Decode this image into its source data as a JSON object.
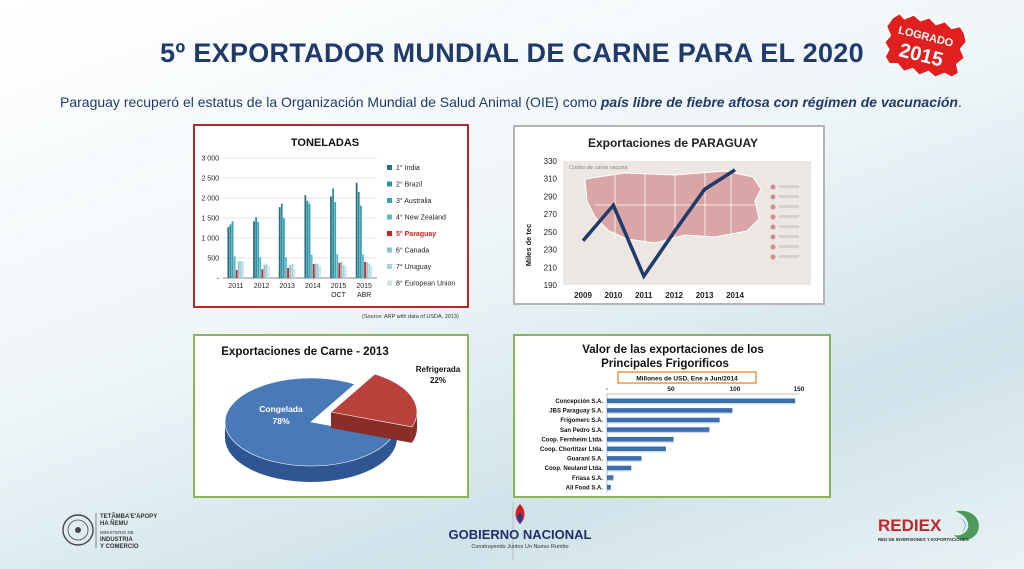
{
  "header": {
    "title": "5º EXPORTADOR MUNDIAL DE CARNE PARA EL 2020",
    "subtitle_plain": "Paraguay recuperó el estatus de la Organización Mundial de Salud Animal (OIE) como ",
    "subtitle_emph": "país libre de fiebre aftosa con régimen de vacunación",
    "subtitle_end": "."
  },
  "badge": {
    "line1": "LOGRADO",
    "line2": "2015",
    "color": "#e11f1f"
  },
  "colors": {
    "title": "#1f3a6b",
    "paraguay": "#d41f1f",
    "line": "#1f3a6b",
    "pie_congelada": "#4a79b8",
    "pie_refrigerada": "#b8413c",
    "bars_hbar": "#3d6fb0"
  },
  "chart_data": [
    {
      "type": "bar",
      "title": "TONELADAS",
      "categories": [
        "2011",
        "2012",
        "2013",
        "2014",
        "2015 OCT",
        "2015 ABR"
      ],
      "ylim": [
        0,
        3000
      ],
      "yticks": [
        "-",
        "500",
        "1 000",
        "1 500",
        "2 000",
        "2 500",
        "3 000"
      ],
      "series": [
        {
          "name": "1° India",
          "color": "#2a6f86",
          "values": [
            1270,
            1420,
            1770,
            2070,
            2040,
            2380
          ]
        },
        {
          "name": "2° Brazil",
          "color": "#2f8fa3",
          "values": [
            1340,
            1520,
            1860,
            1930,
            2240,
            2150
          ]
        },
        {
          "name": "3° Australia",
          "color": "#36a3b3",
          "values": [
            1420,
            1400,
            1500,
            1860,
            1900,
            1810
          ]
        },
        {
          "name": "4° New Zealand",
          "color": "#5bb8c4",
          "values": [
            540,
            520,
            520,
            580,
            600,
            590
          ]
        },
        {
          "name": "5° Paraguay",
          "color": "#d41f1f",
          "values": [
            200,
            220,
            250,
            350,
            380,
            400
          ]
        },
        {
          "name": "6° Canada",
          "color": "#87c5d1",
          "values": [
            420,
            330,
            320,
            360,
            410,
            400
          ]
        },
        {
          "name": "7° Uruguay",
          "color": "#a8d2dc",
          "values": [
            420,
            350,
            350,
            350,
            320,
            360
          ]
        },
        {
          "name": "8° European Union",
          "color": "#c9e3ea",
          "values": [
            430,
            290,
            240,
            300,
            300,
            300
          ]
        }
      ],
      "source": "(Source: ARP with data of USDA, 2013)"
    },
    {
      "type": "line",
      "title": "Exportaciones de PARAGUAY",
      "ylabel": "Miles de tec",
      "x": [
        "2009",
        "2010",
        "2011",
        "2012",
        "2013",
        "2014"
      ],
      "values": [
        240,
        280,
        200,
        250,
        298,
        320
      ],
      "ylim": [
        190,
        330
      ],
      "yticks": [
        "190",
        "210",
        "230",
        "250",
        "270",
        "290",
        "310",
        "330"
      ],
      "background_caption": "Cortes de carne vacuna"
    },
    {
      "type": "pie",
      "title": "Exportaciones de Carne - 2013",
      "slices": [
        {
          "label": "Congelada",
          "pct": "78%",
          "value": 78
        },
        {
          "label": "Refrigerada",
          "pct": "22%",
          "value": 22
        }
      ]
    },
    {
      "type": "bar",
      "orientation": "horizontal",
      "title_line1": "Valor de las exportaciones de los",
      "title_line2": "Principales Frigorificos",
      "units_label": "Millones de USD, Ene a Jun/2014",
      "xlim": [
        0,
        150
      ],
      "xticks": [
        "-",
        "50",
        "100",
        "150"
      ],
      "categories": [
        "Concepción S.A.",
        "JBS Paraguay S.A.",
        "Frigomerc S.A.",
        "San Pedro S.A.",
        "Coop. Fernheim Ltda.",
        "Coop. Chortitzer Ltda.",
        "Guaraní S.A.",
        "Coop. Neuland Ltda.",
        "Friasa S.A.",
        "All Food S.A."
      ],
      "values": [
        147,
        98,
        88,
        80,
        52,
        46,
        27,
        19,
        5,
        3
      ]
    }
  ],
  "footer": {
    "left_line1": "TETÃMBA'E'APOPY",
    "left_line2": "HA ÑEMU",
    "left_line3": "MINISTERIO DE",
    "left_line4": "INDUSTRIA",
    "left_line5": "Y COMERCIO",
    "center_main": "GOBIERNO NACIONAL",
    "center_sub": "Construyendo Juntos Un Nuevo Rumbo",
    "right_main": "REDIEX",
    "right_sub": "RED DE INVERSIONES Y EXPORTACIONES"
  }
}
